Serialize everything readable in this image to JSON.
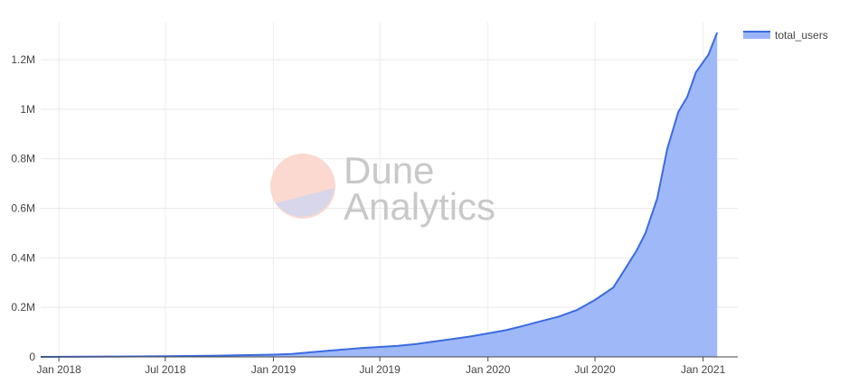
{
  "chart_data": {
    "type": "area",
    "title": "",
    "xlabel": "",
    "ylabel": "",
    "x_ticks": [
      "Jan 2018",
      "Jul 2018",
      "Jan 2019",
      "Jul 2019",
      "Jan 2020",
      "Jul 2020",
      "Jan 2021"
    ],
    "y_ticks": [
      "0",
      "0.2M",
      "0.4M",
      "0.6M",
      "0.8M",
      "1M",
      "1.2M"
    ],
    "ylim": [
      0,
      1350000
    ],
    "xlim": [
      "2017-12-01",
      "2021-03-01"
    ],
    "grid": true,
    "legend": "top-right",
    "series": [
      {
        "name": "total_users",
        "color": "#3b6be0",
        "fill": "#9ab4f8",
        "points": [
          [
            "2017-12-01",
            0
          ],
          [
            "2018-01-01",
            500
          ],
          [
            "2018-04-01",
            1500
          ],
          [
            "2018-07-01",
            3000
          ],
          [
            "2018-10-01",
            5000
          ],
          [
            "2019-01-01",
            9000
          ],
          [
            "2019-02-01",
            12000
          ],
          [
            "2019-03-01",
            18000
          ],
          [
            "2019-04-01",
            24000
          ],
          [
            "2019-05-01",
            30000
          ],
          [
            "2019-06-01",
            36000
          ],
          [
            "2019-07-01",
            40000
          ],
          [
            "2019-08-01",
            45000
          ],
          [
            "2019-09-01",
            52000
          ],
          [
            "2019-10-01",
            62000
          ],
          [
            "2019-11-01",
            72000
          ],
          [
            "2019-12-01",
            82000
          ],
          [
            "2020-01-01",
            95000
          ],
          [
            "2020-02-01",
            108000
          ],
          [
            "2020-03-01",
            125000
          ],
          [
            "2020-04-01",
            145000
          ],
          [
            "2020-05-01",
            163000
          ],
          [
            "2020-06-01",
            190000
          ],
          [
            "2020-07-01",
            230000
          ],
          [
            "2020-08-01",
            280000
          ],
          [
            "2020-08-20",
            350000
          ],
          [
            "2020-09-10",
            430000
          ],
          [
            "2020-09-25",
            500000
          ],
          [
            "2020-10-15",
            640000
          ],
          [
            "2020-11-01",
            840000
          ],
          [
            "2020-11-20",
            990000
          ],
          [
            "2020-12-05",
            1050000
          ],
          [
            "2020-12-20",
            1150000
          ],
          [
            "2021-01-10",
            1220000
          ],
          [
            "2021-01-25",
            1310000
          ]
        ]
      }
    ]
  },
  "watermark": {
    "line1": "Dune",
    "line2": "Analytics"
  }
}
